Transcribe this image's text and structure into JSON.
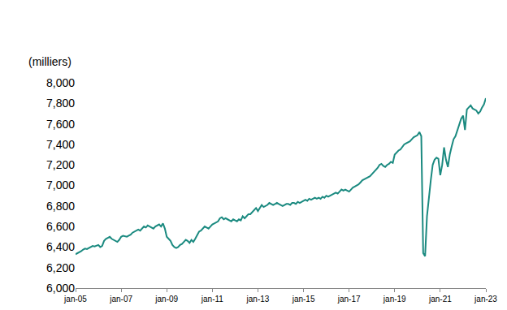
{
  "chart_data": {
    "type": "line",
    "ylabel": "(milliers)",
    "color": "#1b8a80",
    "grid": false,
    "ylim": [
      6000,
      8000
    ],
    "yticks": [
      {
        "value": 6000,
        "label": "6,000"
      },
      {
        "value": 6200,
        "label": "6,200"
      },
      {
        "value": 6400,
        "label": "6,400"
      },
      {
        "value": 6600,
        "label": "6,600"
      },
      {
        "value": 6800,
        "label": "6,800"
      },
      {
        "value": 7000,
        "label": "7,000"
      },
      {
        "value": 7200,
        "label": "7,200"
      },
      {
        "value": 7400,
        "label": "7,400"
      },
      {
        "value": 7600,
        "label": "7,600"
      },
      {
        "value": 7800,
        "label": "7,800"
      },
      {
        "value": 8000,
        "label": "8,000"
      }
    ],
    "categories": [
      "jan-05",
      null,
      null,
      null,
      null,
      null,
      null,
      null,
      null,
      null,
      null,
      null,
      null,
      null,
      null,
      null,
      null,
      null,
      null,
      null,
      null,
      null,
      null,
      null,
      "jan-07",
      null,
      null,
      null,
      null,
      null,
      null,
      null,
      null,
      null,
      null,
      null,
      null,
      null,
      null,
      null,
      null,
      null,
      null,
      null,
      null,
      null,
      null,
      null,
      "jan-09",
      null,
      null,
      null,
      null,
      null,
      null,
      null,
      null,
      null,
      null,
      null,
      null,
      null,
      null,
      null,
      null,
      null,
      null,
      null,
      null,
      null,
      null,
      null,
      "jan-11",
      null,
      null,
      null,
      null,
      null,
      null,
      null,
      null,
      null,
      null,
      null,
      null,
      null,
      null,
      null,
      null,
      null,
      null,
      null,
      null,
      null,
      null,
      null,
      "jan-13",
      null,
      null,
      null,
      null,
      null,
      null,
      null,
      null,
      null,
      null,
      null,
      null,
      null,
      null,
      null,
      null,
      null,
      null,
      null,
      null,
      null,
      null,
      null,
      "jan-15",
      null,
      null,
      null,
      null,
      null,
      null,
      null,
      null,
      null,
      null,
      null,
      null,
      null,
      null,
      null,
      null,
      null,
      null,
      null,
      null,
      null,
      null,
      null,
      "jan-17",
      null,
      null,
      null,
      null,
      null,
      null,
      null,
      null,
      null,
      null,
      null,
      null,
      null,
      null,
      null,
      null,
      null,
      null,
      null,
      null,
      null,
      null,
      null,
      "jan-19",
      null,
      null,
      null,
      null,
      null,
      null,
      null,
      null,
      null,
      null,
      null,
      null,
      null,
      null,
      null,
      null,
      null,
      null,
      null,
      null,
      null,
      null,
      null,
      "jan-21",
      null,
      null,
      null,
      null,
      null,
      null,
      null,
      null,
      null,
      null,
      null,
      null,
      null,
      null,
      null,
      null,
      null,
      null,
      null,
      null,
      null,
      null,
      null,
      "jan-23"
    ],
    "values": [
      6330,
      6340,
      6345,
      6360,
      6375,
      6385,
      6380,
      6390,
      6400,
      6410,
      6405,
      6415,
      6420,
      6400,
      6410,
      6460,
      6480,
      6490,
      6500,
      6480,
      6470,
      6460,
      6450,
      6470,
      6500,
      6510,
      6505,
      6500,
      6510,
      6520,
      6540,
      6550,
      6560,
      6570,
      6560,
      6580,
      6600,
      6590,
      6610,
      6600,
      6590,
      6580,
      6600,
      6610,
      6620,
      6600,
      6630,
      6580,
      6500,
      6480,
      6460,
      6420,
      6400,
      6390,
      6400,
      6420,
      6430,
      6450,
      6470,
      6460,
      6440,
      6470,
      6450,
      6480,
      6520,
      6550,
      6560,
      6580,
      6600,
      6590,
      6580,
      6600,
      6620,
      6630,
      6640,
      6650,
      6680,
      6690,
      6670,
      6680,
      6670,
      6660,
      6650,
      6670,
      6660,
      6650,
      6670,
      6660,
      6700,
      6680,
      6700,
      6720,
      6720,
      6740,
      6760,
      6780,
      6750,
      6780,
      6810,
      6790,
      6800,
      6810,
      6830,
      6820,
      6810,
      6820,
      6830,
      6820,
      6810,
      6800,
      6810,
      6820,
      6820,
      6810,
      6830,
      6830,
      6820,
      6840,
      6830,
      6840,
      6850,
      6860,
      6850,
      6870,
      6860,
      6870,
      6880,
      6870,
      6880,
      6870,
      6890,
      6880,
      6900,
      6890,
      6900,
      6910,
      6920,
      6930,
      6920,
      6940,
      6960,
      6950,
      6960,
      6950,
      6940,
      6960,
      6980,
      6990,
      7000,
      7010,
      7030,
      7050,
      7060,
      7070,
      7080,
      7090,
      7110,
      7130,
      7150,
      7170,
      7200,
      7210,
      7190,
      7180,
      7200,
      7210,
      7230,
      7220,
      7300,
      7320,
      7340,
      7350,
      7380,
      7400,
      7410,
      7420,
      7430,
      7450,
      7470,
      7480,
      7490,
      7520,
      7480,
      6340,
      6310,
      6700,
      6900,
      7050,
      7200,
      7250,
      7270,
      7260,
      7100,
      7200,
      7370,
      7250,
      7180,
      7300,
      7380,
      7450,
      7480,
      7540,
      7600,
      7650,
      7680,
      7540,
      7740,
      7760,
      7780,
      7750,
      7740,
      7730,
      7700,
      7720,
      7760,
      7790,
      7850
    ]
  }
}
